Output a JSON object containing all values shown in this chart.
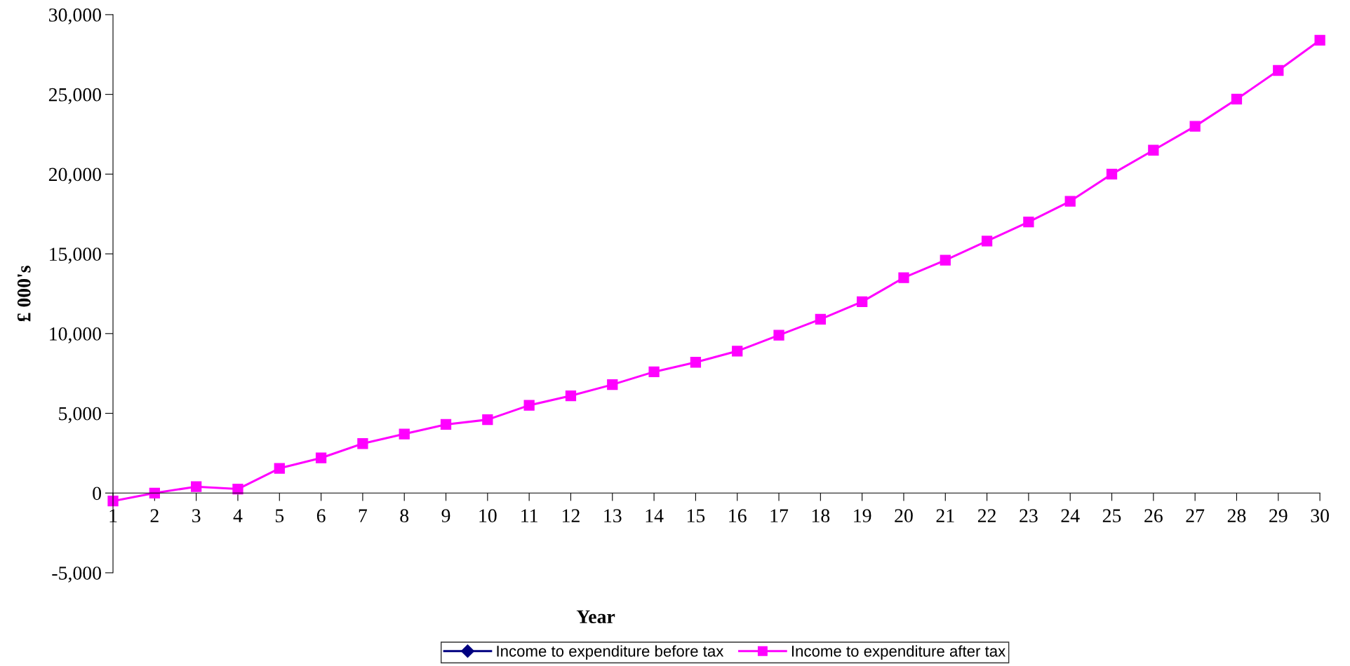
{
  "chart_data": {
    "type": "line",
    "xlabel": "Year",
    "ylabel": "£ 000's",
    "categories": [
      "1",
      "2",
      "3",
      "4",
      "5",
      "6",
      "7",
      "8",
      "9",
      "10",
      "11",
      "12",
      "13",
      "14",
      "15",
      "16",
      "17",
      "18",
      "19",
      "20",
      "21",
      "22",
      "23",
      "24",
      "25",
      "26",
      "27",
      "28",
      "29",
      "30"
    ],
    "series": [
      {
        "name": "Income to expenditure before tax",
        "color": "#000080",
        "marker": "diamond",
        "values": [
          null,
          null,
          null,
          null,
          null,
          null,
          null,
          null,
          null,
          null,
          null,
          null,
          null,
          null,
          null,
          null,
          null,
          null,
          null,
          null,
          null,
          null,
          null,
          null,
          null,
          null,
          null,
          null,
          null,
          null
        ]
      },
      {
        "name": "Income to expenditure after tax",
        "color": "#ff00ff",
        "marker": "square",
        "values": [
          -500,
          0,
          400,
          250,
          1550,
          2200,
          3100,
          3700,
          4300,
          4600,
          5500,
          6100,
          6800,
          7600,
          8200,
          8900,
          9900,
          10900,
          12000,
          13500,
          14600,
          15800,
          17000,
          18300,
          20000,
          21500,
          23000,
          24700,
          26500,
          28400
        ]
      }
    ],
    "ylim": [
      -5000,
      30000
    ],
    "yticks": [
      {
        "value": -5000,
        "label": "-5,000"
      },
      {
        "value": 0,
        "label": "0"
      },
      {
        "value": 5000,
        "label": "5,000"
      },
      {
        "value": 10000,
        "label": "10,000"
      },
      {
        "value": 15000,
        "label": "15,000"
      },
      {
        "value": 20000,
        "label": "20,000"
      },
      {
        "value": 25000,
        "label": "25,000"
      },
      {
        "value": 30000,
        "label": "30,000"
      }
    ],
    "grid": false,
    "legend": "bottom",
    "line_style": "solid"
  }
}
